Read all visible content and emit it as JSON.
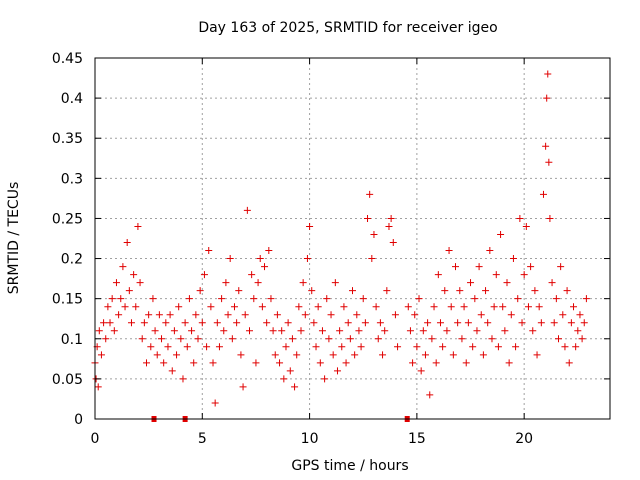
{
  "chart_data": {
    "type": "scatter",
    "title": "Day 163 of 2025, SRMTID for receiver igeo",
    "xlabel": "GPS time / hours",
    "ylabel": "SRMTID / TECUs",
    "xlim": [
      0,
      24
    ],
    "ylim": [
      0,
      0.45
    ],
    "xticks": [
      0,
      5,
      10,
      15,
      20
    ],
    "xtick_labels": [
      "0",
      "5",
      "10",
      "15",
      "20"
    ],
    "yticks": [
      0,
      0.05,
      0.1,
      0.15,
      0.2,
      0.25,
      0.3,
      0.35,
      0.4,
      0.45
    ],
    "ytick_labels": [
      "0",
      "0.05",
      "0.1",
      "0.15",
      "0.2",
      "0.25",
      "0.3",
      "0.35",
      "0.4",
      "0.45"
    ],
    "grid": true,
    "marker": "+",
    "color": "#e00000",
    "gap_markers_x": [
      2.75,
      4.2,
      14.55
    ],
    "series": [
      {
        "name": "SRMTID",
        "points": [
          [
            0.0,
            0.07
          ],
          [
            0.05,
            0.05
          ],
          [
            0.1,
            0.09
          ],
          [
            0.15,
            0.04
          ],
          [
            0.2,
            0.11
          ],
          [
            0.3,
            0.08
          ],
          [
            0.4,
            0.12
          ],
          [
            0.5,
            0.1
          ],
          [
            0.6,
            0.14
          ],
          [
            0.7,
            0.12
          ],
          [
            0.8,
            0.15
          ],
          [
            0.9,
            0.11
          ],
          [
            1.0,
            0.17
          ],
          [
            1.1,
            0.13
          ],
          [
            1.2,
            0.15
          ],
          [
            1.3,
            0.19
          ],
          [
            1.4,
            0.14
          ],
          [
            1.5,
            0.22
          ],
          [
            1.6,
            0.16
          ],
          [
            1.7,
            0.12
          ],
          [
            1.8,
            0.18
          ],
          [
            1.9,
            0.14
          ],
          [
            2.0,
            0.24
          ],
          [
            2.1,
            0.17
          ],
          [
            2.2,
            0.1
          ],
          [
            2.3,
            0.12
          ],
          [
            2.4,
            0.07
          ],
          [
            2.5,
            0.13
          ],
          [
            2.6,
            0.09
          ],
          [
            2.7,
            0.15
          ],
          [
            2.8,
            0.11
          ],
          [
            2.9,
            0.08
          ],
          [
            3.0,
            0.13
          ],
          [
            3.1,
            0.1
          ],
          [
            3.2,
            0.07
          ],
          [
            3.3,
            0.12
          ],
          [
            3.4,
            0.09
          ],
          [
            3.5,
            0.13
          ],
          [
            3.6,
            0.06
          ],
          [
            3.7,
            0.11
          ],
          [
            3.8,
            0.08
          ],
          [
            3.9,
            0.14
          ],
          [
            4.0,
            0.1
          ],
          [
            4.1,
            0.05
          ],
          [
            4.2,
            0.12
          ],
          [
            4.3,
            0.09
          ],
          [
            4.4,
            0.15
          ],
          [
            4.5,
            0.11
          ],
          [
            4.6,
            0.07
          ],
          [
            4.7,
            0.13
          ],
          [
            4.8,
            0.1
          ],
          [
            4.9,
            0.16
          ],
          [
            5.0,
            0.12
          ],
          [
            5.1,
            0.18
          ],
          [
            5.2,
            0.09
          ],
          [
            5.3,
            0.21
          ],
          [
            5.4,
            0.14
          ],
          [
            5.5,
            0.07
          ],
          [
            5.6,
            0.02
          ],
          [
            5.7,
            0.12
          ],
          [
            5.8,
            0.09
          ],
          [
            5.9,
            0.15
          ],
          [
            6.0,
            0.11
          ],
          [
            6.1,
            0.17
          ],
          [
            6.2,
            0.13
          ],
          [
            6.3,
            0.2
          ],
          [
            6.4,
            0.1
          ],
          [
            6.5,
            0.14
          ],
          [
            6.6,
            0.12
          ],
          [
            6.7,
            0.16
          ],
          [
            6.8,
            0.08
          ],
          [
            6.9,
            0.04
          ],
          [
            7.0,
            0.13
          ],
          [
            7.1,
            0.26
          ],
          [
            7.2,
            0.11
          ],
          [
            7.3,
            0.18
          ],
          [
            7.4,
            0.15
          ],
          [
            7.5,
            0.07
          ],
          [
            7.6,
            0.17
          ],
          [
            7.7,
            0.2
          ],
          [
            7.8,
            0.14
          ],
          [
            7.9,
            0.19
          ],
          [
            8.0,
            0.12
          ],
          [
            8.1,
            0.21
          ],
          [
            8.2,
            0.15
          ],
          [
            8.3,
            0.11
          ],
          [
            8.4,
            0.08
          ],
          [
            8.5,
            0.13
          ],
          [
            8.6,
            0.07
          ],
          [
            8.7,
            0.11
          ],
          [
            8.8,
            0.05
          ],
          [
            8.9,
            0.09
          ],
          [
            9.0,
            0.12
          ],
          [
            9.1,
            0.06
          ],
          [
            9.2,
            0.1
          ],
          [
            9.3,
            0.04
          ],
          [
            9.4,
            0.08
          ],
          [
            9.5,
            0.14
          ],
          [
            9.6,
            0.11
          ],
          [
            9.7,
            0.17
          ],
          [
            9.8,
            0.13
          ],
          [
            9.9,
            0.2
          ],
          [
            10.0,
            0.24
          ],
          [
            10.1,
            0.16
          ],
          [
            10.2,
            0.12
          ],
          [
            10.3,
            0.09
          ],
          [
            10.4,
            0.14
          ],
          [
            10.5,
            0.07
          ],
          [
            10.6,
            0.11
          ],
          [
            10.7,
            0.05
          ],
          [
            10.8,
            0.15
          ],
          [
            10.9,
            0.1
          ],
          [
            11.0,
            0.13
          ],
          [
            11.1,
            0.08
          ],
          [
            11.2,
            0.17
          ],
          [
            11.3,
            0.06
          ],
          [
            11.4,
            0.11
          ],
          [
            11.5,
            0.09
          ],
          [
            11.6,
            0.14
          ],
          [
            11.7,
            0.07
          ],
          [
            11.8,
            0.12
          ],
          [
            11.9,
            0.1
          ],
          [
            12.0,
            0.16
          ],
          [
            12.1,
            0.08
          ],
          [
            12.2,
            0.13
          ],
          [
            12.3,
            0.11
          ],
          [
            12.4,
            0.09
          ],
          [
            12.5,
            0.15
          ],
          [
            12.6,
            0.12
          ],
          [
            12.7,
            0.25
          ],
          [
            12.8,
            0.28
          ],
          [
            12.9,
            0.2
          ],
          [
            13.0,
            0.23
          ],
          [
            13.1,
            0.14
          ],
          [
            13.2,
            0.1
          ],
          [
            13.3,
            0.12
          ],
          [
            13.4,
            0.08
          ],
          [
            13.5,
            0.11
          ],
          [
            13.6,
            0.16
          ],
          [
            13.7,
            0.24
          ],
          [
            13.8,
            0.25
          ],
          [
            13.9,
            0.22
          ],
          [
            14.0,
            0.13
          ],
          [
            14.1,
            0.09
          ],
          [
            14.6,
            0.14
          ],
          [
            14.7,
            0.11
          ],
          [
            14.8,
            0.07
          ],
          [
            14.9,
            0.13
          ],
          [
            15.0,
            0.09
          ],
          [
            15.1,
            0.15
          ],
          [
            15.2,
            0.06
          ],
          [
            15.3,
            0.11
          ],
          [
            15.4,
            0.08
          ],
          [
            15.5,
            0.12
          ],
          [
            15.6,
            0.03
          ],
          [
            15.7,
            0.1
          ],
          [
            15.8,
            0.14
          ],
          [
            15.9,
            0.07
          ],
          [
            16.0,
            0.18
          ],
          [
            16.1,
            0.12
          ],
          [
            16.2,
            0.09
          ],
          [
            16.3,
            0.16
          ],
          [
            16.4,
            0.11
          ],
          [
            16.5,
            0.21
          ],
          [
            16.6,
            0.14
          ],
          [
            16.7,
            0.08
          ],
          [
            16.8,
            0.19
          ],
          [
            16.9,
            0.12
          ],
          [
            17.0,
            0.16
          ],
          [
            17.1,
            0.1
          ],
          [
            17.2,
            0.14
          ],
          [
            17.3,
            0.07
          ],
          [
            17.4,
            0.12
          ],
          [
            17.5,
            0.17
          ],
          [
            17.6,
            0.09
          ],
          [
            17.7,
            0.15
          ],
          [
            17.8,
            0.11
          ],
          [
            17.9,
            0.19
          ],
          [
            18.0,
            0.13
          ],
          [
            18.1,
            0.08
          ],
          [
            18.2,
            0.16
          ],
          [
            18.3,
            0.12
          ],
          [
            18.4,
            0.21
          ],
          [
            18.5,
            0.1
          ],
          [
            18.6,
            0.14
          ],
          [
            18.7,
            0.18
          ],
          [
            18.8,
            0.09
          ],
          [
            18.9,
            0.23
          ],
          [
            19.0,
            0.14
          ],
          [
            19.1,
            0.11
          ],
          [
            19.2,
            0.17
          ],
          [
            19.3,
            0.07
          ],
          [
            19.4,
            0.13
          ],
          [
            19.5,
            0.2
          ],
          [
            19.6,
            0.09
          ],
          [
            19.7,
            0.15
          ],
          [
            19.8,
            0.25
          ],
          [
            19.9,
            0.12
          ],
          [
            20.0,
            0.18
          ],
          [
            20.1,
            0.24
          ],
          [
            20.2,
            0.14
          ],
          [
            20.3,
            0.19
          ],
          [
            20.4,
            0.11
          ],
          [
            20.5,
            0.16
          ],
          [
            20.6,
            0.08
          ],
          [
            20.7,
            0.14
          ],
          [
            20.8,
            0.12
          ],
          [
            20.9,
            0.28
          ],
          [
            21.0,
            0.34
          ],
          [
            21.05,
            0.4
          ],
          [
            21.1,
            0.43
          ],
          [
            21.15,
            0.32
          ],
          [
            21.2,
            0.25
          ],
          [
            21.3,
            0.17
          ],
          [
            21.4,
            0.12
          ],
          [
            21.5,
            0.15
          ],
          [
            21.6,
            0.1
          ],
          [
            21.7,
            0.19
          ],
          [
            21.8,
            0.13
          ],
          [
            21.9,
            0.09
          ],
          [
            22.0,
            0.16
          ],
          [
            22.1,
            0.07
          ],
          [
            22.2,
            0.12
          ],
          [
            22.3,
            0.14
          ],
          [
            22.4,
            0.09
          ],
          [
            22.5,
            0.11
          ],
          [
            22.6,
            0.13
          ],
          [
            22.7,
            0.1
          ],
          [
            22.8,
            0.12
          ],
          [
            22.9,
            0.15
          ]
        ]
      }
    ]
  }
}
